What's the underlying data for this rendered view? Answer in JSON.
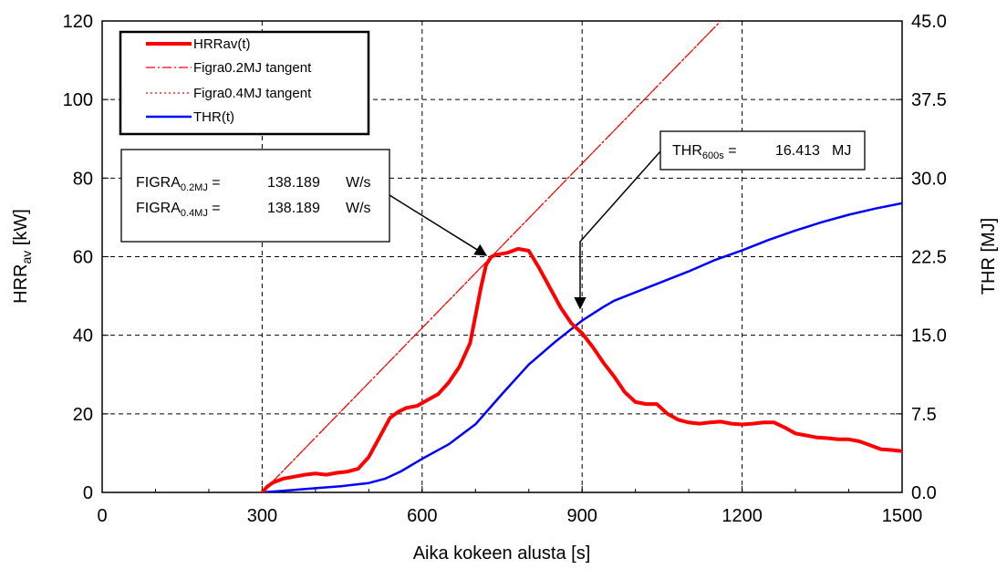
{
  "chart_data": {
    "type": "line",
    "xlabel": "Aika kokeen alusta  [s]",
    "ylabel": {
      "main": "HRR",
      "sub": "av",
      "unit": " [kW]"
    },
    "y2label": "THR [MJ]",
    "xlim": [
      0,
      1500
    ],
    "ylim": [
      0,
      120
    ],
    "y2lim": [
      0,
      45
    ],
    "grid": true,
    "legend_position": "top-left",
    "x_ticks": [
      "0",
      "300",
      "600",
      "900",
      "1200",
      "1500"
    ],
    "y_ticks": [
      "0",
      "20",
      "40",
      "60",
      "80",
      "100",
      "120"
    ],
    "y2_ticks": [
      "0.0",
      "7.5",
      "15.0",
      "22.5",
      "30.0",
      "37.5",
      "45.0"
    ],
    "series": [
      {
        "name": "HRRav(t)",
        "axis": "left",
        "color": "#ff0000",
        "style": "solid",
        "x": [
          300,
          310,
          320,
          340,
          360,
          380,
          400,
          420,
          440,
          460,
          480,
          500,
          520,
          540,
          555,
          570,
          590,
          610,
          630,
          650,
          670,
          690,
          700,
          710,
          720,
          730,
          740,
          760,
          780,
          800,
          820,
          840,
          860,
          880,
          900,
          920,
          940,
          960,
          980,
          1000,
          1020,
          1040,
          1060,
          1080,
          1100,
          1120,
          1140,
          1160,
          1180,
          1200,
          1220,
          1240,
          1260,
          1280,
          1300,
          1320,
          1340,
          1360,
          1380,
          1400,
          1420,
          1440,
          1460,
          1480,
          1500
        ],
        "y": [
          0,
          1.5,
          2.5,
          3.5,
          4,
          4.5,
          4.8,
          4.5,
          5,
          5.3,
          6,
          9,
          14,
          19,
          20.5,
          21.5,
          22,
          23.5,
          25,
          28,
          32,
          38,
          45,
          52,
          58,
          60,
          60.5,
          61,
          62,
          61.5,
          57,
          52,
          47,
          43,
          40.5,
          37,
          33,
          29.5,
          25.5,
          23,
          22.5,
          22.5,
          20,
          18.5,
          17.8,
          17.5,
          17.8,
          18,
          17.5,
          17.3,
          17.5,
          17.8,
          17.8,
          16.5,
          15,
          14.5,
          14,
          13.8,
          13.5,
          13.5,
          13,
          12,
          11,
          10.8,
          10.5
        ]
      },
      {
        "name": "Figra0.2MJ tangent",
        "axis": "left",
        "color": "#ff0000",
        "style": "dashdot",
        "x": [
          300,
          1160
        ],
        "y": [
          0,
          120
        ]
      },
      {
        "name": "Figra0.4MJ tangent",
        "axis": "left",
        "color": "#ff0000",
        "style": "dotted",
        "x": [
          300,
          1160
        ],
        "y": [
          0,
          120
        ]
      },
      {
        "name": "THR(t)",
        "axis": "right",
        "color": "#0000ff",
        "style": "solid",
        "x": [
          300,
          350,
          400,
          450,
          500,
          530,
          560,
          600,
          650,
          700,
          750,
          800,
          850,
          900,
          940,
          960,
          1000,
          1050,
          1100,
          1150,
          1200,
          1250,
          1300,
          1350,
          1400,
          1450,
          1500
        ],
        "y": [
          0,
          0.2,
          0.4,
          0.6,
          0.9,
          1.3,
          2,
          3.2,
          4.6,
          6.5,
          9.4,
          12.2,
          14.4,
          16.4,
          17.7,
          18.3,
          19.1,
          20.1,
          21.1,
          22.2,
          23.1,
          24.1,
          25.0,
          25.8,
          26.5,
          27.1,
          27.6
        ]
      }
    ]
  },
  "annotations": {
    "figra_box": {
      "line1_label": "FIGRA",
      "line1_sub": "0.2MJ",
      "line1_eq": " =",
      "line1_value": "138.189",
      "line1_unit": "W/s",
      "line2_label": "FIGRA",
      "line2_sub": "0.4MJ",
      "line2_eq": " =",
      "line2_value": "138.189",
      "line2_unit": "W/s",
      "arrow_to": {
        "x": 735,
        "y": 60
      }
    },
    "thr_box": {
      "label": "THR",
      "sub": "600s",
      "eq": " =",
      "value": "16.413",
      "unit": "MJ",
      "arrow_to": {
        "x": 900,
        "y": 16.4,
        "axis": "right"
      }
    }
  }
}
